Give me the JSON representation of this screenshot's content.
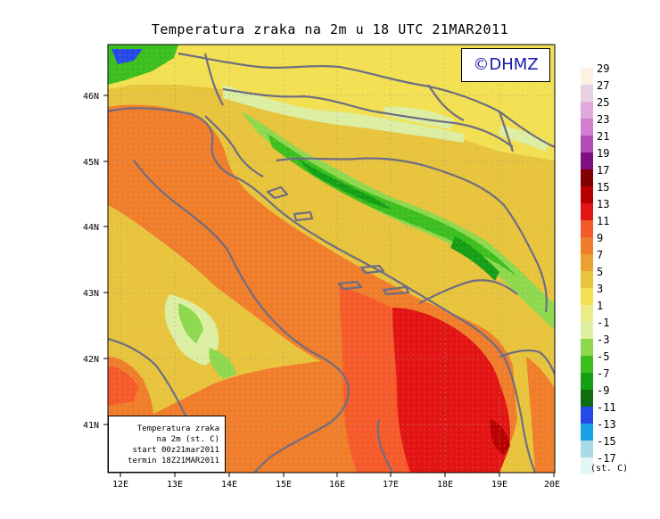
{
  "title": "Temperatura zraka na 2m u 18 UTC 21MAR2011",
  "copyright": "©DHMZ",
  "info_box": {
    "line1": "Temperatura zraka",
    "line2": "na 2m (st. C)",
    "line3": "start 00z21mar2011",
    "line4": "termin 18Z21MAR2011"
  },
  "lat_labels": [
    "46N",
    "45N",
    "44N",
    "43N",
    "42N",
    "41N"
  ],
  "lon_labels": [
    "12E",
    "13E",
    "14E",
    "15E",
    "16E",
    "17E",
    "18E",
    "19E",
    "20E"
  ],
  "colorbar": {
    "unit": "(st. C)",
    "labels": [
      "29",
      "27",
      "25",
      "23",
      "21",
      "19",
      "17",
      "15",
      "13",
      "11",
      "9",
      "7",
      "5",
      "3",
      "1",
      "-1",
      "-3",
      "-5",
      "-7",
      "-9",
      "-11",
      "-13",
      "-15",
      "-17"
    ],
    "colors": [
      "#fdf1e4",
      "#ead0e3",
      "#e0a8db",
      "#d37fd0",
      "#b24db8",
      "#7f0f7f",
      "#820000",
      "#b80000",
      "#e21414",
      "#f55a2a",
      "#f07d2a",
      "#eba032",
      "#e8c33c",
      "#f2e052",
      "#eceb8a",
      "#dceea2",
      "#8ed84e",
      "#3cbf1e",
      "#159e16",
      "#0e6e0e",
      "#2748e8",
      "#1ca1e6",
      "#a8dbe4",
      "#e3f6f4"
    ]
  },
  "colors": {
    "sea_warm": "#f07d2a",
    "hot_core": "#f01414",
    "frame": "#000000",
    "coast": "#6e6e82"
  }
}
